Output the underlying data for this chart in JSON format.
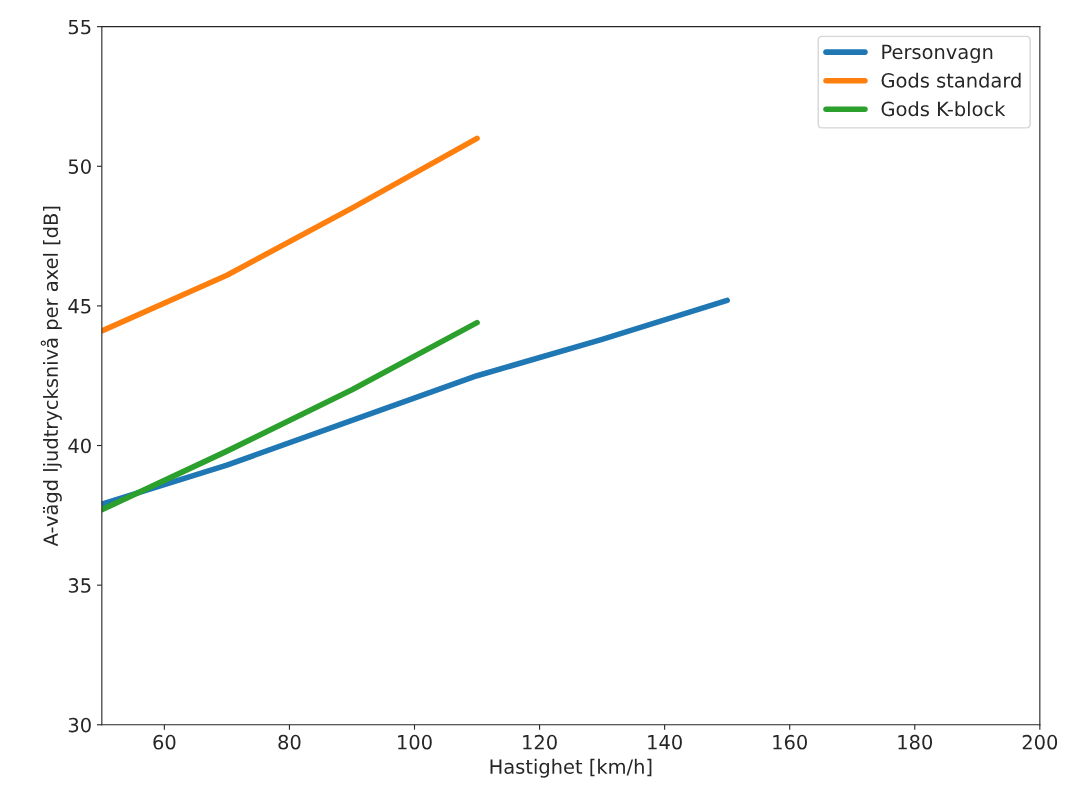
{
  "chart_data": {
    "type": "line",
    "xlabel": "Hastighet [km/h]",
    "ylabel": "A-vägd ljudtrycksnivå per axel [dB]",
    "xlim": [
      50,
      200
    ],
    "xticks": [
      60,
      80,
      100,
      120,
      140,
      160,
      180,
      200
    ],
    "ylim": [
      30,
      55
    ],
    "yticks": [
      30,
      35,
      40,
      45,
      50,
      55
    ],
    "grid": false,
    "legend": "top right",
    "marker": "none",
    "line_style": "solid",
    "series": [
      {
        "name": "Personvagn",
        "color": "#1f77b4",
        "x": [
          50,
          70,
          90,
          110,
          130,
          150
        ],
        "values": [
          37.9,
          39.3,
          40.9,
          42.5,
          43.8,
          45.2
        ]
      },
      {
        "name": "Gods standard",
        "color": "#ff7f0e",
        "x": [
          50,
          70,
          90,
          110
        ],
        "values": [
          44.1,
          46.1,
          48.5,
          51.0
        ]
      },
      {
        "name": "Gods K-block",
        "color": "#2ca02c",
        "x": [
          50,
          70,
          90,
          110
        ],
        "values": [
          37.7,
          39.8,
          42.0,
          44.4
        ]
      }
    ]
  }
}
